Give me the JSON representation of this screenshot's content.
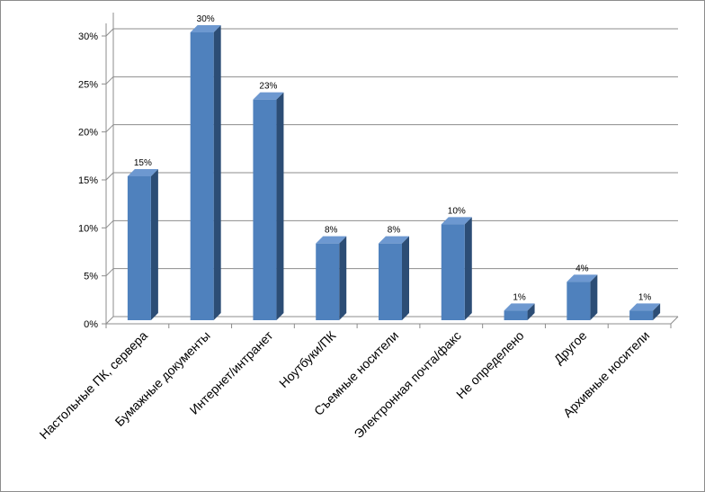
{
  "chart_data": {
    "type": "bar",
    "categories": [
      "Настольные ПК, сервера",
      "Бумажные документы",
      "Интернет/интранет",
      "Ноутбуки/ПК",
      "Съемные носители",
      "Электронная почта/факс",
      "Не определено",
      "Другое",
      "Архивные носители"
    ],
    "values": [
      15,
      30,
      23,
      8,
      8,
      10,
      1,
      4,
      1
    ],
    "data_labels": [
      "15%",
      "30%",
      "23%",
      "8%",
      "8%",
      "10%",
      "1%",
      "4%",
      "1%"
    ],
    "y_ticks": [
      0,
      5,
      10,
      15,
      20,
      25,
      30
    ],
    "y_tick_labels": [
      "0%",
      "5%",
      "10%",
      "15%",
      "20%",
      "25%",
      "30%"
    ],
    "ylim": [
      0,
      30
    ],
    "grid": true,
    "legend": "none",
    "style": "3d-columns",
    "colors": {
      "bar_front": "#4f81bd",
      "bar_side": "#2c4d75",
      "bar_top": "#6d98d0",
      "grid": "#8c8c8c",
      "axis": "#8c8c8c"
    }
  }
}
